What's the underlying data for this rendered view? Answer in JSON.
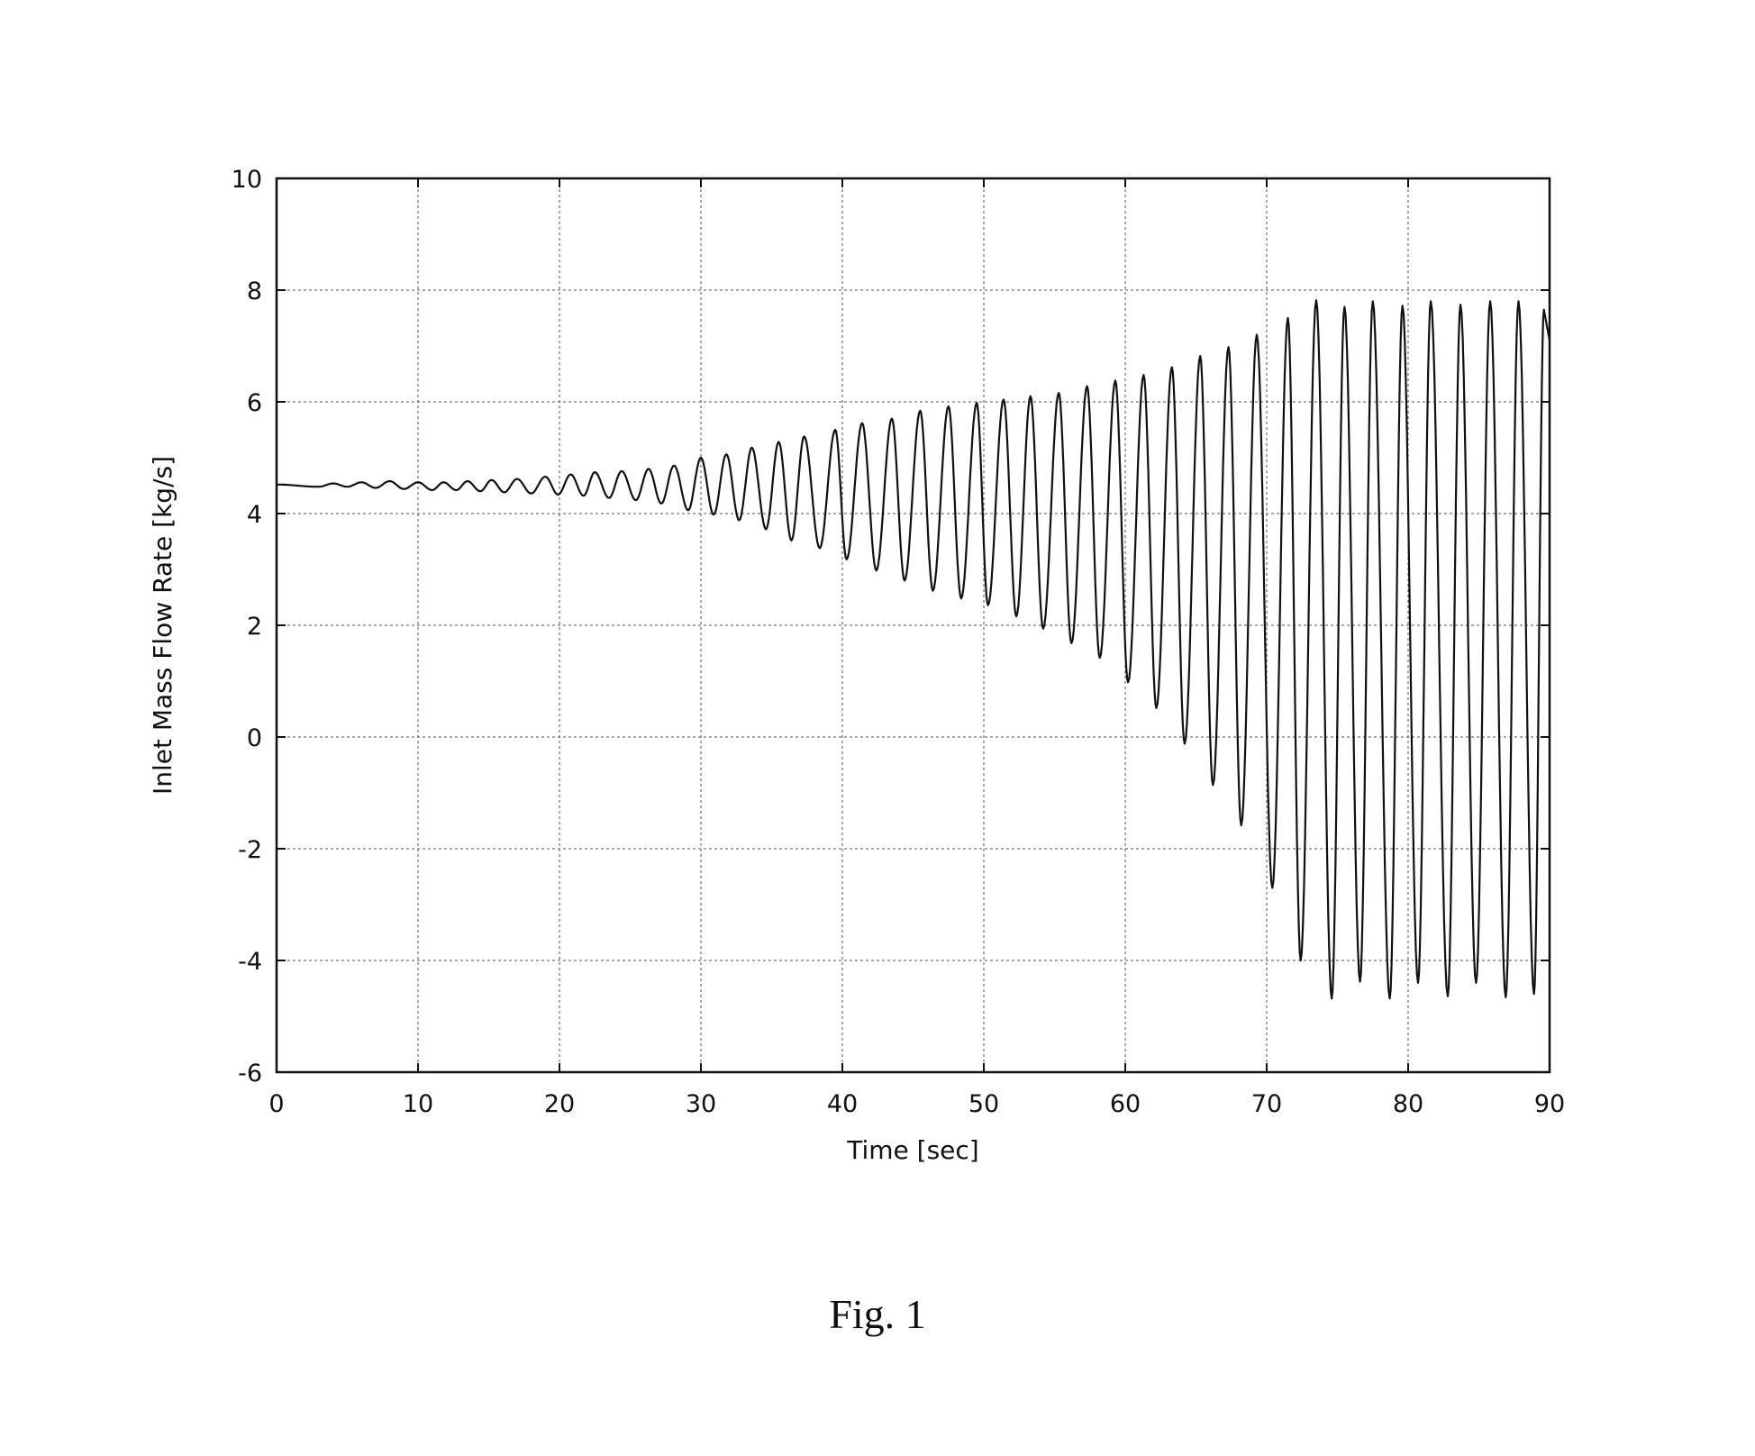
{
  "figure": {
    "caption": "Fig. 1"
  },
  "chart_data": {
    "type": "line",
    "title": "",
    "xlabel": "Time [sec]",
    "ylabel": "Inlet Mass Flow Rate [kg/s]",
    "xlim": [
      0,
      90
    ],
    "ylim": [
      -6,
      10
    ],
    "xticks": [
      0,
      10,
      20,
      30,
      40,
      50,
      60,
      70,
      80,
      90
    ],
    "yticks": [
      -6,
      -4,
      -2,
      0,
      2,
      4,
      6,
      8,
      10
    ],
    "xtick_labels": [
      "0",
      "10",
      "20",
      "30",
      "40",
      "50",
      "60",
      "70",
      "80",
      "90"
    ],
    "ytick_labels": [
      "-6",
      "-4",
      "-2",
      "0",
      "2",
      "4",
      "6",
      "8",
      "10"
    ],
    "grid": true,
    "line_color": "#111111",
    "series": [
      {
        "peaks": [
          [
            0.0,
            4.52
          ],
          [
            4.0,
            4.54
          ],
          [
            6.0,
            4.56
          ],
          [
            8.0,
            4.58
          ],
          [
            10.0,
            4.56
          ],
          [
            11.8,
            4.56
          ],
          [
            13.5,
            4.58
          ],
          [
            15.2,
            4.6
          ],
          [
            17.0,
            4.62
          ],
          [
            19.0,
            4.66
          ],
          [
            20.8,
            4.7
          ],
          [
            22.5,
            4.74
          ],
          [
            24.4,
            4.76
          ],
          [
            26.3,
            4.8
          ],
          [
            28.1,
            4.86
          ],
          [
            30.0,
            5.0
          ],
          [
            31.8,
            5.06
          ],
          [
            33.6,
            5.18
          ],
          [
            35.5,
            5.28
          ],
          [
            37.3,
            5.38
          ],
          [
            39.5,
            5.5
          ],
          [
            41.4,
            5.62
          ],
          [
            43.5,
            5.7
          ],
          [
            45.5,
            5.84
          ],
          [
            47.5,
            5.92
          ],
          [
            49.5,
            5.98
          ],
          [
            51.4,
            6.04
          ],
          [
            53.3,
            6.1
          ],
          [
            55.3,
            6.16
          ],
          [
            57.3,
            6.28
          ],
          [
            59.3,
            6.38
          ],
          [
            61.3,
            6.48
          ],
          [
            63.3,
            6.62
          ],
          [
            65.3,
            6.82
          ],
          [
            67.3,
            6.98
          ],
          [
            69.3,
            7.2
          ],
          [
            71.5,
            7.5
          ],
          [
            73.5,
            7.82
          ],
          [
            75.5,
            7.7
          ],
          [
            77.5,
            7.8
          ],
          [
            79.6,
            7.72
          ],
          [
            81.6,
            7.8
          ],
          [
            83.7,
            7.74
          ],
          [
            85.8,
            7.8
          ],
          [
            87.8,
            7.8
          ],
          [
            89.6,
            7.65
          ]
        ],
        "troughs": [
          [
            3.0,
            4.48
          ],
          [
            5.0,
            4.48
          ],
          [
            7.0,
            4.46
          ],
          [
            9.0,
            4.44
          ],
          [
            11.0,
            4.42
          ],
          [
            12.7,
            4.42
          ],
          [
            14.4,
            4.4
          ],
          [
            16.1,
            4.38
          ],
          [
            18.0,
            4.36
          ],
          [
            19.9,
            4.34
          ],
          [
            21.7,
            4.32
          ],
          [
            23.5,
            4.28
          ],
          [
            25.4,
            4.24
          ],
          [
            27.2,
            4.18
          ],
          [
            29.1,
            4.06
          ],
          [
            30.9,
            3.98
          ],
          [
            32.7,
            3.88
          ],
          [
            34.6,
            3.72
          ],
          [
            36.4,
            3.52
          ],
          [
            38.4,
            3.38
          ],
          [
            40.3,
            3.18
          ],
          [
            42.4,
            2.98
          ],
          [
            44.4,
            2.8
          ],
          [
            46.4,
            2.62
          ],
          [
            48.4,
            2.48
          ],
          [
            50.3,
            2.36
          ],
          [
            52.3,
            2.16
          ],
          [
            54.2,
            1.94
          ],
          [
            56.2,
            1.68
          ],
          [
            58.2,
            1.42
          ],
          [
            60.2,
            0.98
          ],
          [
            62.2,
            0.52
          ],
          [
            64.2,
            -0.12
          ],
          [
            66.2,
            -0.86
          ],
          [
            68.2,
            -1.58
          ],
          [
            70.4,
            -2.7
          ],
          [
            72.4,
            -4.0
          ],
          [
            74.6,
            -4.68
          ],
          [
            76.6,
            -4.38
          ],
          [
            78.7,
            -4.68
          ],
          [
            80.7,
            -4.4
          ],
          [
            82.8,
            -4.64
          ],
          [
            84.8,
            -4.4
          ],
          [
            86.9,
            -4.66
          ],
          [
            88.9,
            -4.6
          ]
        ]
      }
    ]
  }
}
